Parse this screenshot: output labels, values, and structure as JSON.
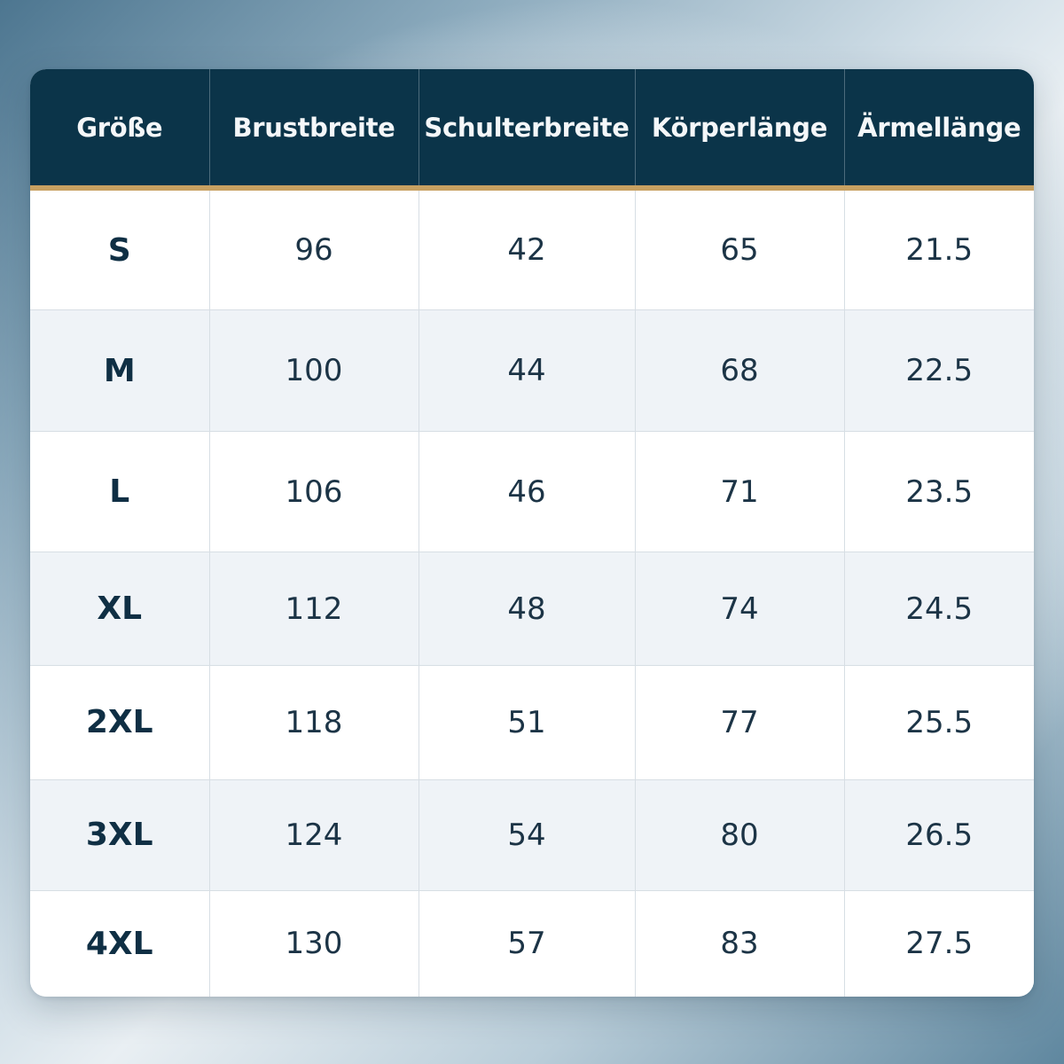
{
  "table": {
    "headers": [
      "Größe",
      "Brustbreite",
      "Schulterbreite",
      "Körperlänge",
      "Ärmellänge"
    ],
    "rows": [
      [
        "S",
        "96",
        "42",
        "65",
        "21.5"
      ],
      [
        "M",
        "100",
        "44",
        "68",
        "22.5"
      ],
      [
        "L",
        "106",
        "46",
        "71",
        "23.5"
      ],
      [
        "XL",
        "112",
        "48",
        "74",
        "24.5"
      ],
      [
        "2XL",
        "118",
        "51",
        "77",
        "25.5"
      ],
      [
        "3XL",
        "124",
        "54",
        "80",
        "26.5"
      ],
      [
        "4XL",
        "130",
        "57",
        "83",
        "27.5"
      ]
    ]
  },
  "colors": {
    "header_bg": "#0b3449",
    "header_text": "#f4f7f9",
    "accent_line": "#c7a061",
    "body_text": "#1c3446",
    "row_alt": "#eff3f7"
  }
}
